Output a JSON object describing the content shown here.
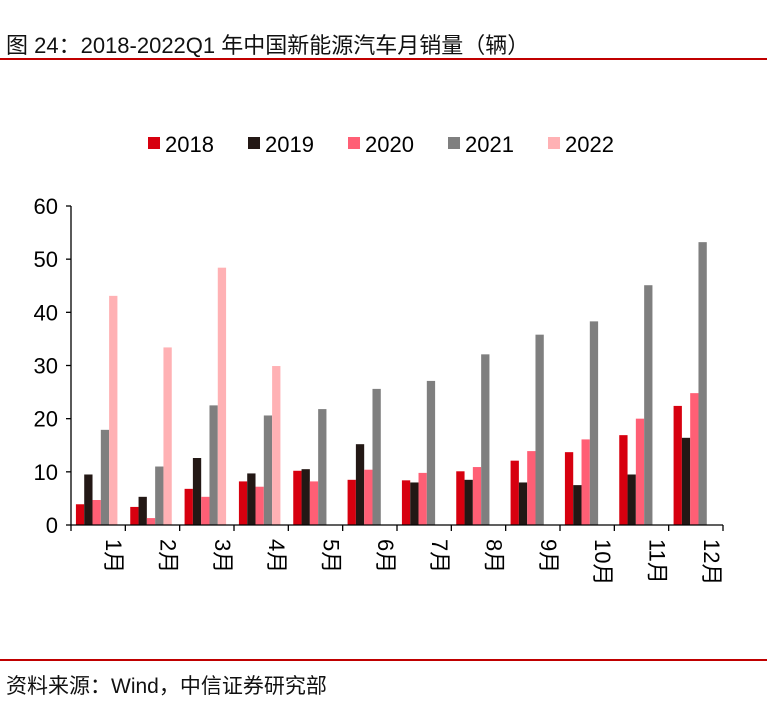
{
  "title": "图 24：2018-2022Q1 年中国新能源汽车月销量（辆）",
  "source": "资料来源：Wind，中信证券研究部",
  "chart_data": {
    "type": "bar",
    "categories": [
      "1月",
      "2月",
      "3月",
      "4月",
      "5月",
      "6月",
      "7月",
      "8月",
      "9月",
      "10月",
      "11月",
      "12月"
    ],
    "ylim": [
      0,
      60
    ],
    "yticks": [
      0,
      10,
      20,
      30,
      40,
      50,
      60
    ],
    "legend_position": "top",
    "series": [
      {
        "name": "2018",
        "color": "#d7000f",
        "values": [
          3.9,
          3.4,
          6.8,
          8.2,
          10.2,
          8.5,
          8.4,
          10.1,
          12.1,
          13.7,
          16.9,
          22.4
        ]
      },
      {
        "name": "2019",
        "color": "#231815",
        "values": [
          9.5,
          5.3,
          12.6,
          9.7,
          10.5,
          15.2,
          8.0,
          8.5,
          8.0,
          7.5,
          9.5,
          16.4
        ]
      },
      {
        "name": "2020",
        "color": "#ff5f75",
        "values": [
          4.7,
          1.3,
          5.3,
          7.2,
          8.2,
          10.4,
          9.8,
          10.9,
          13.9,
          16.1,
          20.0,
          24.8
        ]
      },
      {
        "name": "2021",
        "color": "#7f7f7f",
        "values": [
          17.9,
          11.0,
          22.5,
          20.6,
          21.8,
          25.6,
          27.1,
          32.1,
          35.8,
          38.3,
          45.1,
          53.2
        ]
      },
      {
        "name": "2022",
        "color": "#ffb1b4",
        "values": [
          43.1,
          33.4,
          48.4,
          29.9,
          null,
          null,
          null,
          null,
          null,
          null,
          null,
          null
        ]
      }
    ]
  }
}
